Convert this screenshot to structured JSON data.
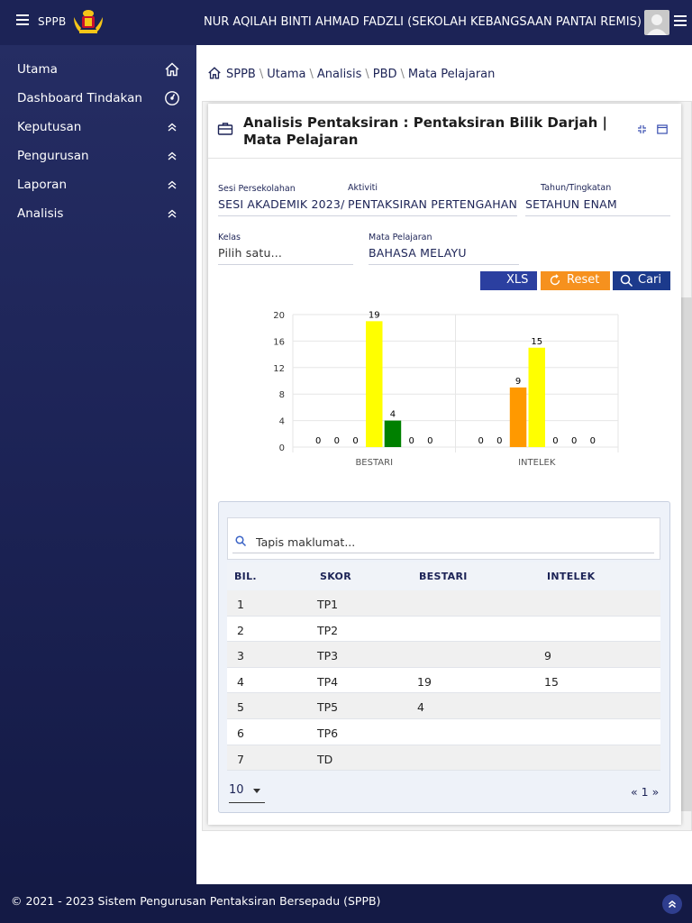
{
  "topbar": {
    "brand": "SPPB",
    "user": "NUR AQILAH BINTI AHMAD FADZLI (SEKOLAH KEBANGSAAN PANTAI REMIS)"
  },
  "sidebar": {
    "items": [
      {
        "label": "Utama",
        "icon": "home-icon"
      },
      {
        "label": "Dashboard Tindakan",
        "icon": "dashboard-icon"
      },
      {
        "label": "Keputusan",
        "icon": "chevron-double-up-icon"
      },
      {
        "label": "Pengurusan",
        "icon": "chevron-double-up-icon"
      },
      {
        "label": "Laporan",
        "icon": "chevron-double-up-icon"
      },
      {
        "label": "Analisis",
        "icon": "chevron-double-up-icon"
      }
    ]
  },
  "breadcrumb": [
    "SPPB",
    "Utama",
    "Analisis",
    "PBD",
    "Mata Pelajaran"
  ],
  "portlet": {
    "title": "Analisis Pentaksiran : Pentaksiran Bilik Darjah | Mata Pelajaran",
    "fields": {
      "sesi": {
        "label": "Sesi Persekolahan",
        "value": "SESI AKADEMIK 2023/"
      },
      "aktiviti": {
        "label": "Aktiviti",
        "value": "PENTAKSIRAN PERTENGAHAN"
      },
      "tahun": {
        "label": "Tahun/Tingkatan",
        "value": "SETAHUN ENAM"
      },
      "kelas": {
        "label": "Kelas",
        "value": "Pilih satu..."
      },
      "mata": {
        "label": "Mata Pelajaran",
        "value": "BAHASA MELAYU"
      }
    },
    "buttons": {
      "xls": "XLS",
      "reset": "Reset",
      "cari": "Cari"
    }
  },
  "chart_data": {
    "type": "bar",
    "categories": [
      "BESTARI",
      "INTELEK"
    ],
    "series": [
      {
        "values": [
          0,
          0
        ],
        "color": "#7cb5ec"
      },
      {
        "values": [
          0,
          0
        ],
        "color": "#434348"
      },
      {
        "values": [
          0,
          9
        ],
        "color": "#ff9900"
      },
      {
        "values": [
          19,
          15
        ],
        "color": "#ffff00"
      },
      {
        "values": [
          4,
          0
        ],
        "color": "#008000"
      },
      {
        "values": [
          0,
          0
        ],
        "color": "#8085e9"
      },
      {
        "values": [
          0,
          0
        ],
        "color": "#f15c80"
      }
    ],
    "ylim": [
      0,
      20
    ],
    "yticks": [
      0,
      4,
      8,
      12,
      16,
      20
    ],
    "grid": true
  },
  "table": {
    "filter_placeholder": "Tapis maklumat...",
    "headers": [
      "BIL.",
      "SKOR",
      "BESTARI",
      "INTELEK"
    ],
    "rows": [
      [
        "1",
        "TP1",
        "",
        ""
      ],
      [
        "2",
        "TP2",
        "",
        ""
      ],
      [
        "3",
        "TP3",
        "",
        "9"
      ],
      [
        "4",
        "TP4",
        "19",
        "15"
      ],
      [
        "5",
        "TP5",
        "4",
        ""
      ],
      [
        "6",
        "TP6",
        "",
        ""
      ],
      [
        "7",
        "TD",
        "",
        ""
      ]
    ],
    "page_size": "10",
    "pager": {
      "prev": "«",
      "page": "1",
      "next": "»"
    }
  },
  "footer": {
    "copyright": "© 2021 - 2023 Sistem Pengurusan Pentaksiran Bersepadu (SPPB)"
  },
  "colors": {
    "navy": "#1c2356",
    "orange": "#f6911e",
    "blue": "#2b3fa0"
  }
}
